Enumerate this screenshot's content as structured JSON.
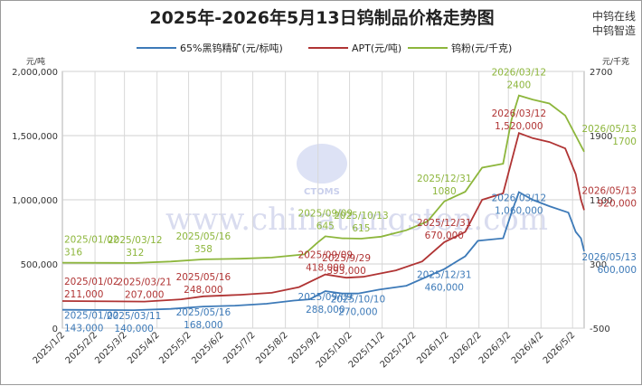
{
  "header": {
    "title": "2025年-2026年5月13日钨制品价格走势图",
    "brand_line1": "中钨在线",
    "brand_line2": "中钨智造"
  },
  "watermark": {
    "url_text": "www.chinatungsten.com",
    "logo_text": "CTOMS"
  },
  "chart_data": {
    "type": "line",
    "left_axis_unit": "元/吨",
    "right_axis_unit": "元/千克",
    "left_ylim": [
      0,
      2000000
    ],
    "left_ticks": [
      "0",
      "500,000",
      "1,000,000",
      "1,500,000",
      "2,000,000"
    ],
    "right_ylim": [
      -500,
      2700
    ],
    "right_ticks": [
      "-500",
      "300",
      "1100",
      "1900",
      "2700"
    ],
    "x_ticks": [
      "2025/1/2",
      "2025/2/2",
      "2025/3/2",
      "2025/4/2",
      "2025/5/2",
      "2025/6/2",
      "2025/7/2",
      "2025/8/2",
      "2025/9/2",
      "2025/10/2",
      "2025/11/2",
      "2025/12/2",
      "2026/1/2",
      "2026/2/2",
      "2026/3/2",
      "2026/4/2",
      "2026/5/2"
    ],
    "x_range": [
      "2025-01-02",
      "2026-05-13"
    ],
    "grid": true,
    "legend_position": "top",
    "series": [
      {
        "name": "65%黑钨精矿(元/标吨)",
        "axis": "left",
        "color": "#3d7ab8",
        "points": [
          [
            "2025-01-02",
            143000
          ],
          [
            "2025-02-20",
            141000
          ],
          [
            "2025-03-11",
            140000
          ],
          [
            "2025-04-15",
            150000
          ],
          [
            "2025-05-16",
            168000
          ],
          [
            "2025-06-15",
            175000
          ],
          [
            "2025-07-15",
            190000
          ],
          [
            "2025-08-10",
            215000
          ],
          [
            "2025-08-25",
            225000
          ],
          [
            "2025-09-09",
            288000
          ],
          [
            "2025-09-25",
            270000
          ],
          [
            "2025-10-10",
            270000
          ],
          [
            "2025-10-30",
            300000
          ],
          [
            "2025-11-25",
            330000
          ],
          [
            "2025-12-31",
            460000
          ],
          [
            "2026-01-20",
            560000
          ],
          [
            "2026-02-01",
            680000
          ],
          [
            "2026-02-25",
            700000
          ],
          [
            "2026-03-05",
            900000
          ],
          [
            "2026-03-12",
            1060000
          ],
          [
            "2026-03-25",
            1000000
          ],
          [
            "2026-04-10",
            950000
          ],
          [
            "2026-04-28",
            900000
          ],
          [
            "2026-05-05",
            750000
          ],
          [
            "2026-05-10",
            700000
          ],
          [
            "2026-05-13",
            600000
          ]
        ]
      },
      {
        "name": "APT(元/吨)",
        "axis": "left",
        "color": "#b03434",
        "points": [
          [
            "2025-01-02",
            211000
          ],
          [
            "2025-03-21",
            207000
          ],
          [
            "2025-04-25",
            225000
          ],
          [
            "2025-05-16",
            248000
          ],
          [
            "2025-06-20",
            260000
          ],
          [
            "2025-07-20",
            275000
          ],
          [
            "2025-08-15",
            320000
          ],
          [
            "2025-09-09",
            418000
          ],
          [
            "2025-09-29",
            393000
          ],
          [
            "2025-10-15",
            400000
          ],
          [
            "2025-11-15",
            450000
          ],
          [
            "2025-12-10",
            520000
          ],
          [
            "2025-12-31",
            670000
          ],
          [
            "2026-01-20",
            750000
          ],
          [
            "2026-02-05",
            1000000
          ],
          [
            "2026-02-25",
            1050000
          ],
          [
            "2026-03-05",
            1300000
          ],
          [
            "2026-03-12",
            1520000
          ],
          [
            "2026-03-25",
            1480000
          ],
          [
            "2026-04-10",
            1450000
          ],
          [
            "2026-04-25",
            1400000
          ],
          [
            "2026-05-05",
            1200000
          ],
          [
            "2026-05-10",
            1000000
          ],
          [
            "2026-05-13",
            920000
          ]
        ]
      },
      {
        "name": "钨粉(元/千克)",
        "axis": "right",
        "color": "#8db63c",
        "points": [
          [
            "2025-01-02",
            316
          ],
          [
            "2025-03-12",
            312
          ],
          [
            "2025-04-15",
            330
          ],
          [
            "2025-05-16",
            358
          ],
          [
            "2025-06-20",
            365
          ],
          [
            "2025-07-20",
            380
          ],
          [
            "2025-08-20",
            420
          ],
          [
            "2025-09-01",
            560
          ],
          [
            "2025-09-09",
            645
          ],
          [
            "2025-09-25",
            620
          ],
          [
            "2025-10-13",
            615
          ],
          [
            "2025-11-01",
            640
          ],
          [
            "2025-11-25",
            720
          ],
          [
            "2025-12-15",
            830
          ],
          [
            "2025-12-31",
            1080
          ],
          [
            "2026-01-20",
            1200
          ],
          [
            "2026-02-05",
            1500
          ],
          [
            "2026-02-25",
            1550
          ],
          [
            "2026-03-05",
            2100
          ],
          [
            "2026-03-12",
            2400
          ],
          [
            "2026-03-25",
            2350
          ],
          [
            "2026-04-10",
            2300
          ],
          [
            "2026-04-25",
            2150
          ],
          [
            "2026-05-05",
            1900
          ],
          [
            "2026-05-13",
            1700
          ]
        ]
      }
    ],
    "annotations": [
      {
        "series": 0,
        "date": "2025-01-02",
        "lines": [
          "2025/01/02",
          "143,000"
        ]
      },
      {
        "series": 0,
        "date": "2025-03-11",
        "lines": [
          "2025/03/11",
          "140,000"
        ]
      },
      {
        "series": 0,
        "date": "2025-05-16",
        "lines": [
          "2025/05/16",
          "168,000"
        ]
      },
      {
        "series": 0,
        "date": "2025-09-09",
        "lines": [
          "2025/09/09",
          "288,000"
        ]
      },
      {
        "series": 0,
        "date": "2025-10-10",
        "lines": [
          "2025/10/10",
          "270,000"
        ]
      },
      {
        "series": 0,
        "date": "2025-12-31",
        "lines": [
          "2025/12/31",
          "460,000"
        ]
      },
      {
        "series": 0,
        "date": "2026-03-12",
        "lines": [
          "2026/03/12",
          "1,060,000"
        ]
      },
      {
        "series": 0,
        "date": "2026-05-13",
        "lines": [
          "2026/05/13",
          "600,000"
        ]
      },
      {
        "series": 1,
        "date": "2025-01-02",
        "lines": [
          "2025/01/02",
          "211,000"
        ]
      },
      {
        "series": 1,
        "date": "2025-03-21",
        "lines": [
          "2025/03/21",
          "207,000"
        ]
      },
      {
        "series": 1,
        "date": "2025-05-16",
        "lines": [
          "2025/05/16",
          "248,000"
        ]
      },
      {
        "series": 1,
        "date": "2025-09-09",
        "lines": [
          "2025/09/09",
          "418,000"
        ]
      },
      {
        "series": 1,
        "date": "2025-09-29",
        "lines": [
          "2025/9/29",
          "393,000"
        ]
      },
      {
        "series": 1,
        "date": "2025-12-31",
        "lines": [
          "2025/12/31",
          "670,000"
        ]
      },
      {
        "series": 1,
        "date": "2026-03-12",
        "lines": [
          "2026/03/12",
          "1,520,000"
        ]
      },
      {
        "series": 1,
        "date": "2026-05-13",
        "lines": [
          "2026/05/13",
          "920,000"
        ]
      },
      {
        "series": 2,
        "date": "2025-01-02",
        "lines": [
          "2025/01/02",
          "316"
        ]
      },
      {
        "series": 2,
        "date": "2025-03-12",
        "lines": [
          "2025/03/12",
          "312"
        ]
      },
      {
        "series": 2,
        "date": "2025-05-16",
        "lines": [
          "2025/05/16",
          "358"
        ]
      },
      {
        "series": 2,
        "date": "2025-09-09",
        "lines": [
          "2025/09/09",
          "645"
        ]
      },
      {
        "series": 2,
        "date": "2025-10-13",
        "lines": [
          "2025/10/13",
          "615"
        ]
      },
      {
        "series": 2,
        "date": "2025-12-31",
        "lines": [
          "2025/12/31",
          "1080"
        ]
      },
      {
        "series": 2,
        "date": "2026-03-12",
        "lines": [
          "2026/03/12",
          "2400"
        ]
      },
      {
        "series": 2,
        "date": "2026-05-13",
        "lines": [
          "2026/05/13",
          "1700"
        ]
      }
    ]
  }
}
